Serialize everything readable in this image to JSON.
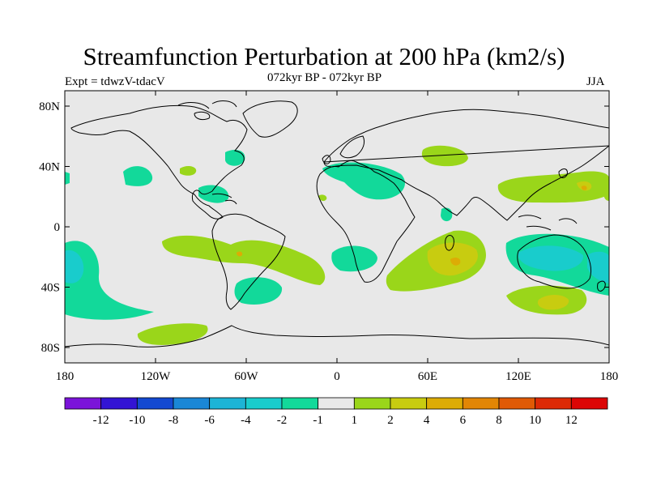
{
  "title": "Streamfunction Perturbation at 200 hPa (km2/s)",
  "left_label": "Expt = tdwzV-tdacV",
  "center_label": "072kyr BP - 072kyr BP",
  "right_label": "JJA",
  "lat_ticks": [
    "80N",
    "40N",
    "0",
    "40S",
    "80S"
  ],
  "lon_ticks": [
    "180",
    "120W",
    "60W",
    "0",
    "60E",
    "120E",
    "180"
  ],
  "colorbar": {
    "colors": [
      "#7b14d9",
      "#3314d4",
      "#1449d1",
      "#1a87d6",
      "#1db4d6",
      "#19cccc",
      "#12d99a",
      "#e8e8e8",
      "#9ad61a",
      "#c8cc10",
      "#dcac05",
      "#e28605",
      "#e05a05",
      "#dc2a05",
      "#dc0505"
    ],
    "labels": [
      "-12",
      "-10",
      "-8",
      "-6",
      "-4",
      "-2",
      "-1",
      "1",
      "2",
      "4",
      "6",
      "8",
      "10",
      "12"
    ]
  },
  "map_background": "#e8e8e8"
}
